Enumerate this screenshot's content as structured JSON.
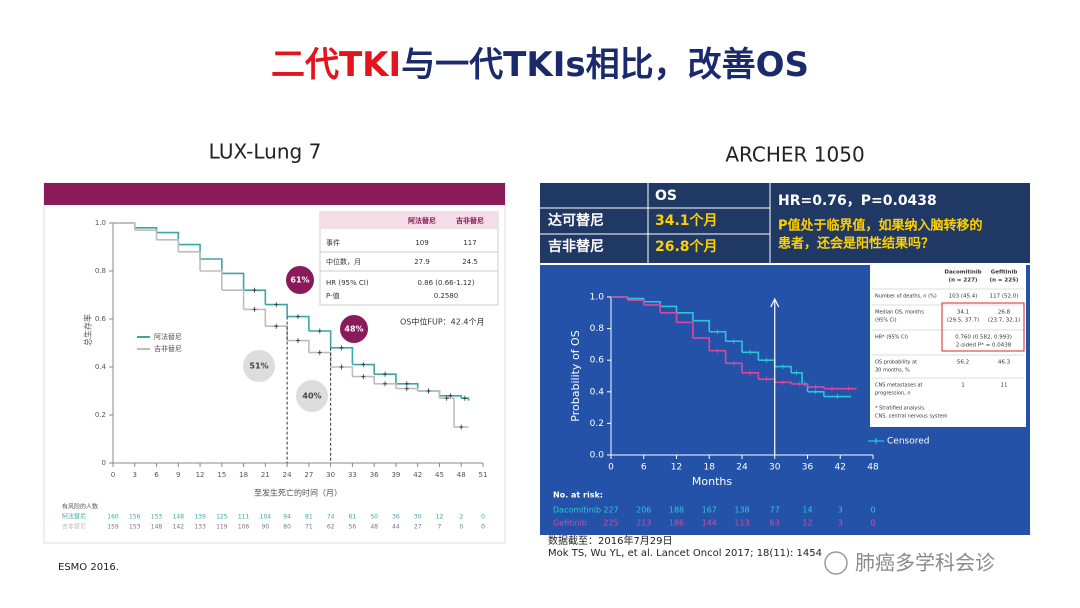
{
  "title": {
    "part1": "二代TKI",
    "part2": "与一代TKIs相比，改善OS"
  },
  "chart_data": [
    {
      "type": "line",
      "step": true,
      "title": "LUX-Lung 7",
      "x_label": "至发生死亡的时间（月）",
      "y_label": "总生存率",
      "xlim": [
        0,
        51
      ],
      "xticks": [
        0,
        3,
        6,
        9,
        12,
        15,
        18,
        21,
        24,
        27,
        30,
        33,
        36,
        39,
        42,
        45,
        48,
        51
      ],
      "ylim": [
        0,
        1
      ],
      "yticks": [
        0,
        0.2,
        0.4,
        0.6,
        0.8,
        {
          "value": 1,
          "label": "1.0"
        }
      ],
      "series": [
        {
          "name": "阿法替尼",
          "color": "#3aa6a8",
          "x": [
            0,
            3,
            6,
            9,
            12,
            15,
            18,
            21,
            24,
            27,
            30,
            33,
            36,
            39,
            42,
            45,
            48,
            49
          ],
          "values": [
            1.0,
            0.98,
            0.96,
            0.91,
            0.85,
            0.79,
            0.72,
            0.66,
            0.61,
            0.55,
            0.48,
            0.41,
            0.37,
            0.33,
            0.3,
            0.28,
            0.27,
            0.26
          ]
        },
        {
          "name": "吉非替尼",
          "color": "#bdbdbd",
          "x": [
            0,
            3,
            6,
            9,
            12,
            15,
            18,
            21,
            24,
            27,
            30,
            33,
            36,
            39,
            42,
            45,
            47,
            49
          ],
          "values": [
            1.0,
            0.97,
            0.93,
            0.88,
            0.8,
            0.72,
            0.64,
            0.57,
            0.51,
            0.46,
            0.4,
            0.36,
            0.33,
            0.31,
            0.3,
            0.27,
            0.15,
            0.15
          ]
        }
      ],
      "annotations": [
        "61%",
        "48%",
        "51%",
        "40%"
      ],
      "note": "OS中位FUP：42.4个月",
      "risk_table": {
        "title": "有风险的人数",
        "rows": [
          [
            "160",
            "156",
            "153",
            "148",
            "139",
            "125",
            "111",
            "104",
            "94",
            "81",
            "74",
            "61",
            "50",
            "36",
            "30",
            "12",
            "2",
            "0"
          ],
          [
            "159",
            "153",
            "148",
            "142",
            "133",
            "119",
            "106",
            "90",
            "80",
            "71",
            "62",
            "56",
            "48",
            "44",
            "27",
            "7",
            "0",
            "0"
          ]
        ]
      },
      "table": {
        "rows": [
          [
            "事件",
            "109",
            "117"
          ],
          [
            "中位数，月",
            "27.9",
            "24.5"
          ]
        ],
        "hr": [
          "HR (95% CI)",
          "0.86 (0.66-1.12)"
        ],
        "p": [
          "P-值",
          "0.2580"
        ]
      }
    },
    {
      "type": "line",
      "step": true,
      "title": "ARCHER 1050",
      "x_label": "Months",
      "y_label": "Probability of OS",
      "xlim": [
        0,
        48
      ],
      "xticks": [
        0,
        6,
        12,
        18,
        24,
        30,
        36,
        42,
        48
      ],
      "ylim": [
        0,
        1
      ],
      "yticks": [
        {
          "value": 0,
          "label": "0.0"
        },
        0.2,
        0.4,
        0.6,
        0.8,
        {
          "value": 1,
          "label": "1.0"
        }
      ],
      "series": [
        {
          "name": "Dacomitinib",
          "color": "#2cc6dc",
          "x": [
            0,
            3,
            6,
            9,
            12,
            15,
            18,
            21,
            24,
            27,
            30,
            33,
            35,
            36,
            39,
            44
          ],
          "values": [
            1.0,
            0.99,
            0.97,
            0.94,
            0.9,
            0.85,
            0.78,
            0.72,
            0.65,
            0.6,
            0.56,
            0.52,
            0.45,
            0.4,
            0.37,
            0.37
          ]
        },
        {
          "name": "Gefitinib",
          "color": "#d9489e",
          "x": [
            0,
            3,
            6,
            9,
            12,
            15,
            18,
            21,
            24,
            27,
            30,
            33,
            36,
            39,
            42,
            45
          ],
          "values": [
            1.0,
            0.98,
            0.95,
            0.9,
            0.84,
            0.74,
            0.66,
            0.58,
            0.52,
            0.48,
            0.46,
            0.45,
            0.43,
            0.42,
            0.42,
            0.42
          ]
        }
      ],
      "legend": "Censored",
      "risk_table": {
        "title": "No. at risk:",
        "rows": [
          [
            "227",
            "206",
            "188",
            "167",
            "138",
            "77",
            "14",
            "3",
            "0"
          ],
          [
            "225",
            "213",
            "186",
            "144",
            "113",
            "63",
            "12",
            "3",
            "0"
          ]
        ]
      },
      "summary": {
        "header": "OS",
        "rows": [
          [
            "达可替尼",
            "34.1个月"
          ],
          [
            "吉非替尼",
            "26.8个月"
          ]
        ],
        "hr": "HR=0.76，P=0.0438",
        "question": [
          "P值处于临界值，如果纳入脑转移的",
          "患者，还会是阳性结果吗？"
        ]
      },
      "table": {
        "n_labels": [
          "(n = 227)",
          "(n = 225)"
        ],
        "rows": [
          {
            "label": [
              "Number of deaths, n (%)"
            ],
            "cells": [
              [
                "103 (45.4)"
              ],
              [
                "117 (52.0)"
              ]
            ]
          },
          {
            "label": [
              "Median OS, months",
              "(95% CI)"
            ],
            "cells": [
              [
                "34.1",
                "(29.5, 37.7)"
              ],
              [
                "26.8",
                "(23.7, 32.1)"
              ]
            ]
          },
          {
            "label": [
              "HR* (95% CI)"
            ],
            "cells": [
              [
                "0.760 (0.582, 0.993)",
                "2-sided P* = 0.0438"
              ]
            ]
          },
          {
            "label": [
              "OS probability at",
              "30 months, %"
            ],
            "cells": [
              [
                "56.2"
              ],
              [
                "46.3"
              ]
            ]
          },
          {
            "label": [
              "CNS metastases at",
              "progression, n"
            ],
            "cells": [
              [
                "1"
              ],
              [
                "11"
              ]
            ]
          }
        ],
        "footnotes": [
          "* Stratified analysis.",
          "CNS, central nervous system"
        ]
      }
    }
  ],
  "footer": {
    "cutoff": "数据截至：2016年7月29日",
    "reference": "Mok TS, Wu YL, et al. Lancet Oncol 2017; 18(11): 1454",
    "source": "ESMO 2016.",
    "watermark": "肺癌多学科会诊"
  }
}
